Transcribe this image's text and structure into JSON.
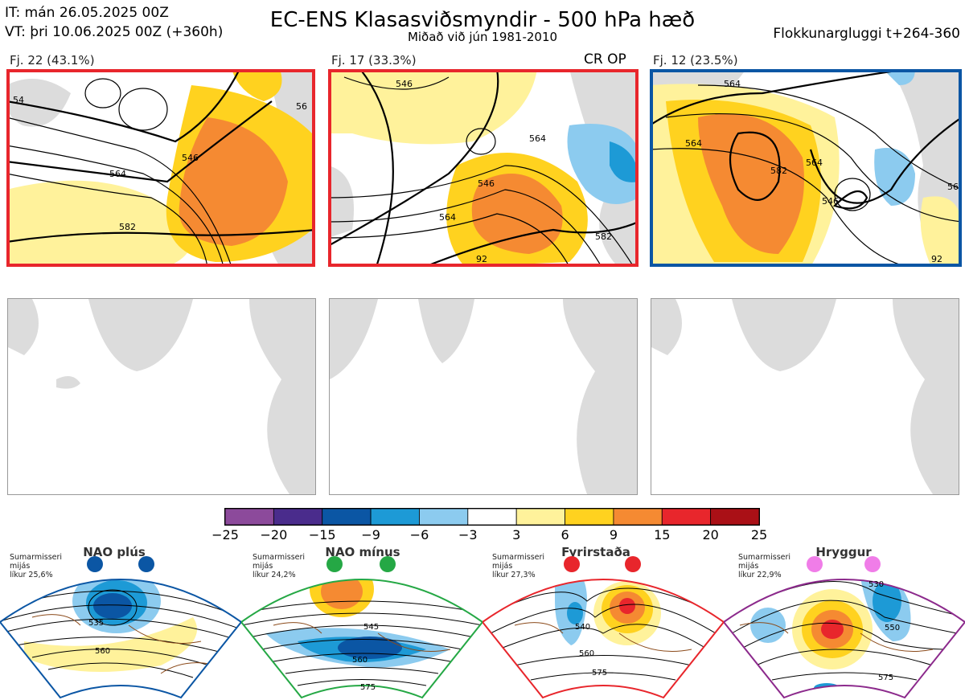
{
  "header": {
    "it_line": "IT: mán 26.05.2025 00Z",
    "vt_line": "VT: þri 10.06.2025 00Z  (+360h)",
    "title": "EC-ENS Klasasviðsmyndir - 500 hPa hæð",
    "subtitle": "Miðað við jún 1981-2010",
    "window": "Flokkunargluggi t+264-360"
  },
  "clusters": [
    {
      "label": "Fj. 22 (43.1%)",
      "border": "#e8262c",
      "tag": "",
      "contours": [
        "54",
        "546",
        "564",
        "582",
        "56"
      ]
    },
    {
      "label": "Fj. 17 (33.3%)",
      "border": "#e8262c",
      "tag": "CR OP",
      "contours": [
        "546",
        "564",
        "546",
        "564",
        "582",
        "92"
      ]
    },
    {
      "label": "Fj. 12 (23.5%)",
      "border": "#0b56a4",
      "tag": "",
      "contours": [
        "564",
        "564",
        "582",
        "564",
        "546",
        "92",
        "56"
      ]
    }
  ],
  "colorbar": {
    "ticks": [
      "−25",
      "−20",
      "−15",
      "−9",
      "−6",
      "−3",
      "3",
      "6",
      "9",
      "15",
      "20",
      "25"
    ],
    "colors": [
      "#8c4a9b",
      "#4a2c8c",
      "#0b56a4",
      "#1d9ad6",
      "#8ccbef",
      "#ffffff",
      "#fff29b",
      "#ffd21f",
      "#f58a32",
      "#e8262c",
      "#aa1016"
    ]
  },
  "regimes": [
    {
      "name": "NAO plús",
      "season": "Sumarmisseri",
      "mid": "mijás",
      "prob": "líkur 25,6%",
      "color": "#0b56a4",
      "dot": "#0b56a4",
      "labels": [
        "535",
        "560"
      ]
    },
    {
      "name": "NAO mínus",
      "season": "Sumarmisseri",
      "mid": "mijás",
      "prob": "líkur 24,2%",
      "color": "#25a845",
      "dot": "#25a845",
      "labels": [
        "545",
        "560",
        "575"
      ]
    },
    {
      "name": "Fyrirstaða",
      "season": "Sumarmisseri",
      "mid": "mijás",
      "prob": "líkur 27,3%",
      "color": "#e8262c",
      "dot": "#e8262c",
      "labels": [
        "540",
        "560",
        "575"
      ]
    },
    {
      "name": "Hryggur",
      "season": "Sumarmisseri",
      "mid": "mijás",
      "prob": "líkur 22,9%",
      "color": "#8c2a8c",
      "dot": "#f07de8",
      "labels": [
        "530",
        "550",
        "575"
      ]
    }
  ]
}
